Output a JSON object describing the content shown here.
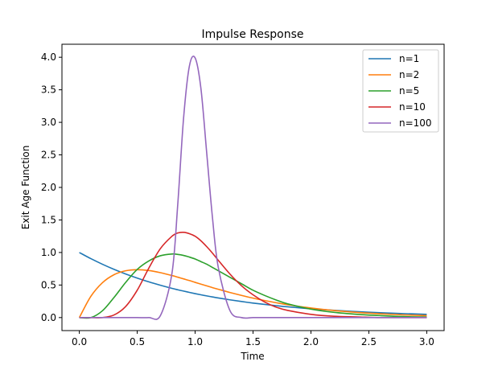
{
  "chart_data": {
    "type": "line",
    "title": "Impulse Response",
    "xlabel": "Time",
    "ylabel": "Exit Age Function",
    "xlim": [
      -0.15,
      3.15
    ],
    "ylim": [
      -0.2,
      4.2
    ],
    "xticks": [
      0.0,
      0.5,
      1.0,
      1.5,
      2.0,
      2.5,
      3.0
    ],
    "yticks": [
      0.0,
      0.5,
      1.0,
      1.5,
      2.0,
      2.5,
      3.0,
      3.5,
      4.0
    ],
    "xtick_labels": [
      "0.0",
      "0.5",
      "1.0",
      "1.5",
      "2.0",
      "2.5",
      "3.0"
    ],
    "ytick_labels": [
      "0.0",
      "0.5",
      "1.0",
      "1.5",
      "2.0",
      "2.5",
      "3.0",
      "3.5",
      "4.0"
    ],
    "grid": false,
    "legend_position": "top-right",
    "x": [
      0.0,
      0.1,
      0.2,
      0.3,
      0.4,
      0.5,
      0.6,
      0.7,
      0.8,
      0.85,
      0.9,
      0.95,
      1.0,
      1.05,
      1.1,
      1.15,
      1.2,
      1.3,
      1.4,
      1.5,
      1.6,
      1.7,
      1.8,
      2.0,
      2.2,
      2.4,
      2.6,
      2.8,
      3.0
    ],
    "series": [
      {
        "name": "n=1",
        "color": "#1f77b4",
        "values": [
          1.0,
          0.905,
          0.819,
          0.741,
          0.67,
          0.607,
          0.549,
          0.497,
          0.449,
          0.427,
          0.407,
          0.387,
          0.368,
          0.35,
          0.333,
          0.317,
          0.301,
          0.273,
          0.247,
          0.223,
          0.202,
          0.183,
          0.165,
          0.135,
          0.111,
          0.091,
          0.074,
          0.061,
          0.05
        ]
      },
      {
        "name": "n=2",
        "color": "#ff7f0e",
        "values": [
          0.0,
          0.327,
          0.536,
          0.659,
          0.719,
          0.736,
          0.723,
          0.69,
          0.646,
          0.621,
          0.595,
          0.569,
          0.541,
          0.514,
          0.487,
          0.46,
          0.435,
          0.386,
          0.341,
          0.299,
          0.262,
          0.228,
          0.197,
          0.147,
          0.108,
          0.079,
          0.057,
          0.041,
          0.03
        ]
      },
      {
        "name": "n=5",
        "color": "#2ca02c",
        "values": [
          0.0,
          0.0,
          0.105,
          0.31,
          0.54,
          0.74,
          0.87,
          0.95,
          0.977,
          0.97,
          0.955,
          0.93,
          0.9,
          0.86,
          0.82,
          0.77,
          0.72,
          0.62,
          0.52,
          0.42,
          0.34,
          0.27,
          0.21,
          0.13,
          0.08,
          0.05,
          0.03,
          0.015,
          0.008
        ]
      },
      {
        "name": "n=10",
        "color": "#d62728",
        "values": [
          0.0,
          0.0,
          0.0,
          0.04,
          0.17,
          0.42,
          0.76,
          1.06,
          1.25,
          1.3,
          1.31,
          1.29,
          1.25,
          1.18,
          1.09,
          0.99,
          0.88,
          0.67,
          0.49,
          0.35,
          0.24,
          0.16,
          0.11,
          0.05,
          0.02,
          0.01,
          0.0,
          0.0,
          0.0
        ]
      },
      {
        "name": "n=100",
        "color": "#9467bd",
        "values": [
          0.0,
          0.0,
          0.0,
          0.0,
          0.0,
          0.0,
          0.0,
          0.03,
          0.68,
          1.74,
          3.06,
          3.86,
          3.99,
          3.52,
          2.53,
          1.53,
          0.77,
          0.11,
          0.0,
          0.0,
          0.0,
          0.0,
          0.0,
          0.0,
          0.0,
          0.0,
          0.0,
          0.0,
          0.0
        ]
      }
    ]
  }
}
